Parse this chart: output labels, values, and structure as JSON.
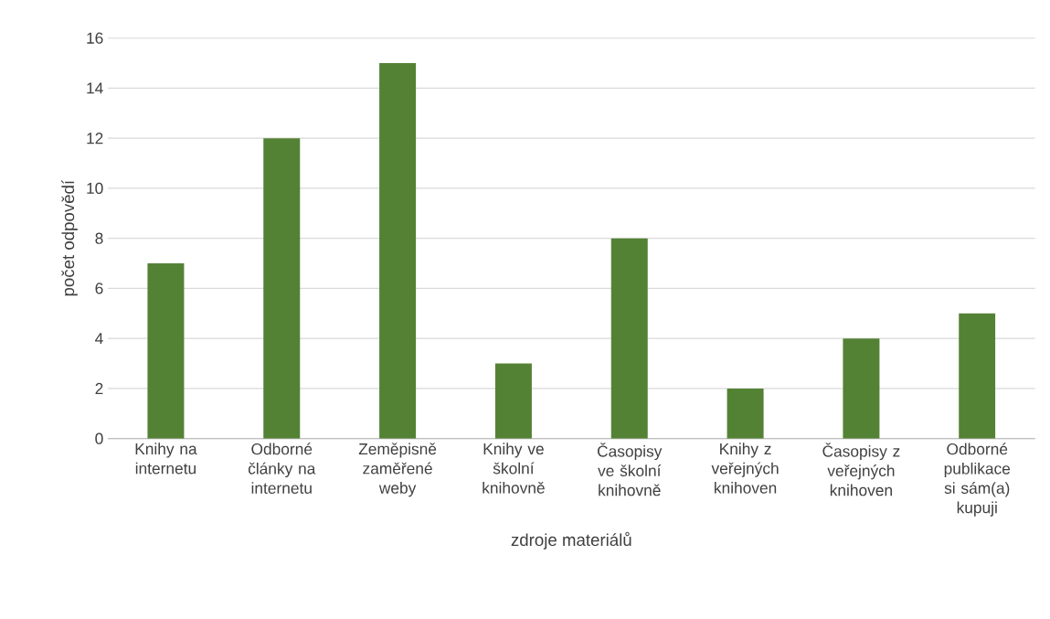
{
  "chart_data": {
    "type": "bar",
    "xlabel": "zdroje materiálů",
    "ylabel": "počet odpovědí",
    "categories": [
      "Knihy na internetu",
      "Odborné články na internetu",
      "Zeměpisně zaměřené weby",
      "Knihy ve školní knihovně",
      "Časopisy ve školní knihovně",
      "Knihy z veřejných knihoven",
      "Časopisy z veřejných knihoven",
      "Odborné publikace si sám(a) kupuji"
    ],
    "values": [
      7,
      12,
      15,
      3,
      8,
      2,
      4,
      5
    ],
    "color": "#548235",
    "ylim": [
      0,
      16
    ],
    "yticks": [
      0,
      2,
      4,
      6,
      8,
      10,
      12,
      14,
      16
    ],
    "grid": "y"
  }
}
